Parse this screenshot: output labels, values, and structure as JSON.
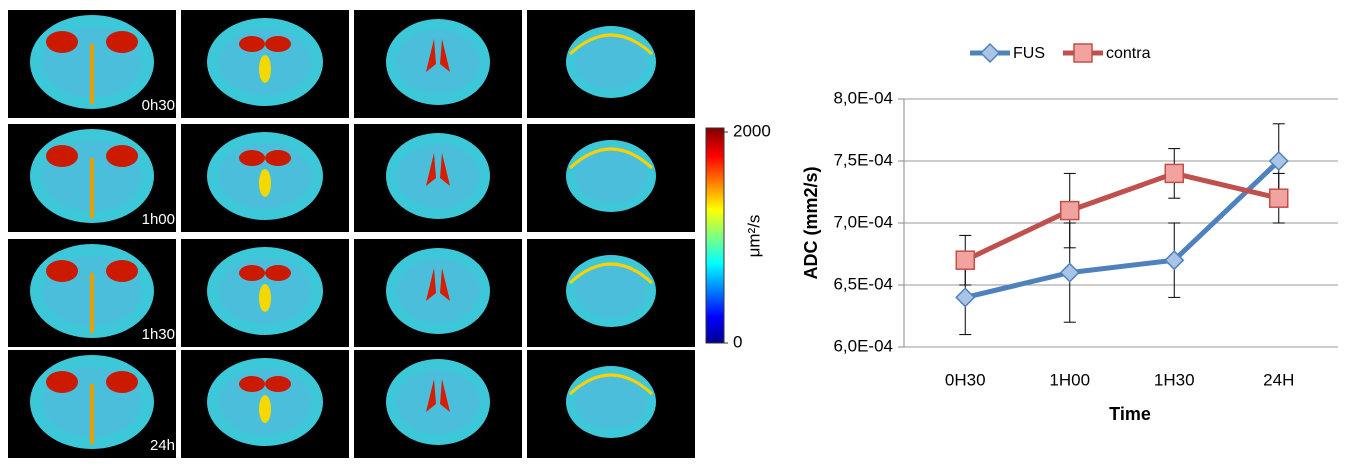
{
  "images": {
    "time_labels": [
      "0h30",
      "1h00",
      "1h30",
      "24h"
    ],
    "colorbar": {
      "label": "μm²/s",
      "lim": [
        0,
        2000
      ],
      "ticks": [
        0,
        2000
      ]
    }
  },
  "chart_data": {
    "type": "line",
    "categories": [
      "0H30",
      "1H00",
      "1H30",
      "24H"
    ],
    "series": [
      {
        "name": "FUS",
        "color": "#4f81bd",
        "marker": "diamond",
        "values": [
          0.00064,
          0.00066,
          0.00067,
          0.00075
        ],
        "errors": [
          3e-05,
          4e-05,
          3e-05,
          3e-05
        ]
      },
      {
        "name": "contra",
        "color": "#c0504d",
        "marker": "square",
        "values": [
          0.00067,
          0.00071,
          0.00074,
          0.00072
        ],
        "errors": [
          2e-05,
          3e-05,
          2e-05,
          2e-05
        ]
      }
    ],
    "xlabel": "Time",
    "ylabel": "ADC (mm2/s)",
    "ylim": [
      0.0006,
      0.0008
    ],
    "yticks": [
      {
        "value": 0.0006,
        "label": "6,0E-04"
      },
      {
        "value": 0.00065,
        "label": "6,5E-04"
      },
      {
        "value": 0.0007,
        "label": "7,0E-04"
      },
      {
        "value": 0.00075,
        "label": "7,5E-04"
      },
      {
        "value": 0.0008,
        "label": "8,0E-04"
      }
    ],
    "grid": true,
    "legend": "top"
  }
}
